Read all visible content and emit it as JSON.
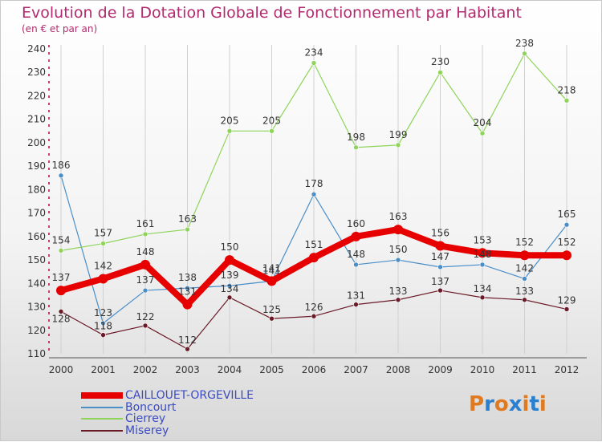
{
  "title": "Evolution de la Dotation Globale de Fonctionnement par Habitant",
  "subtitle": "(en € et par an)",
  "logo": {
    "letters": [
      "P",
      "r",
      "o",
      "x",
      "i",
      "t",
      "i"
    ],
    "colors": [
      "#e07a20",
      "#2a7fd0",
      "#e07a20",
      "#2a7fd0",
      "#e07a20",
      "#2a7fd0",
      "#e07a20"
    ]
  },
  "colors": {
    "title": "#b22a6e",
    "axis": "#c0003c",
    "grid": "#d0d0d0",
    "label": "#333333",
    "legend_text": "#3b4bc4"
  },
  "chart_data": {
    "type": "line",
    "title": "Evolution de la Dotation Globale de Fonctionnement par Habitant",
    "xlabel": "",
    "ylabel": "(en € et par an)",
    "ylim": [
      110,
      240
    ],
    "yticks": [
      110,
      120,
      130,
      140,
      150,
      160,
      170,
      180,
      190,
      200,
      210,
      220,
      230,
      240
    ],
    "categories": [
      "2000",
      "2001",
      "2002",
      "2003",
      "2004",
      "2005",
      "2006",
      "2007",
      "2008",
      "2009",
      "2010",
      "2011",
      "2012"
    ],
    "series": [
      {
        "name": "CAILLOUET-ORGEVILLE",
        "color": "#e60000",
        "values": [
          137,
          142,
          148,
          131,
          150,
          141,
          151,
          160,
          163,
          156,
          153,
          152,
          152
        ]
      },
      {
        "name": "Boncourt",
        "color": "#4a8ec8",
        "values": [
          186,
          123,
          137,
          138,
          139,
          141,
          178,
          148,
          150,
          147,
          148,
          142,
          165
        ]
      },
      {
        "name": "Cierrey",
        "color": "#8ed45a",
        "values": [
          154,
          157,
          161,
          163,
          205,
          205,
          234,
          198,
          199,
          230,
          204,
          238,
          218
        ]
      },
      {
        "name": "Miserey",
        "color": "#6b1a28",
        "values": [
          128,
          118,
          122,
          112,
          134,
          125,
          126,
          131,
          133,
          137,
          134,
          133,
          129
        ]
      }
    ]
  }
}
